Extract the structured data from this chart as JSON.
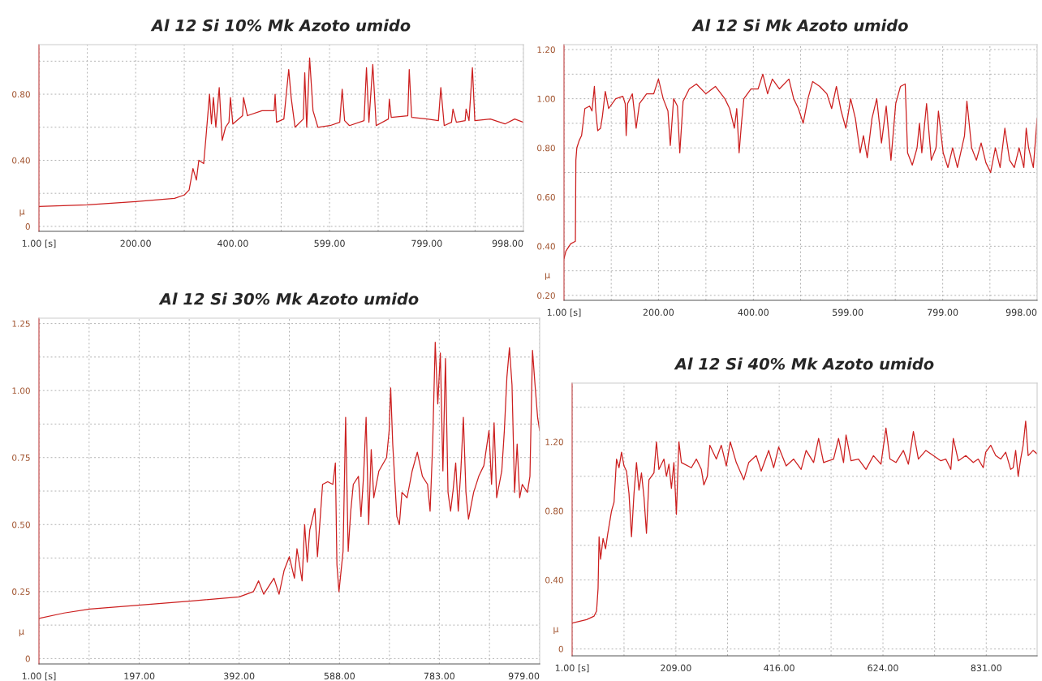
{
  "chart_data": [
    {
      "type": "line",
      "title": "Al 12 Si 10% Mk Azoto umido",
      "ylabel": "μ",
      "grid": true,
      "marker": "none",
      "line_style": "solid",
      "xlim": [
        1,
        998
      ],
      "xticks": [
        {
          "value": 1,
          "label": "1.00 [s]"
        },
        {
          "value": 100.5,
          "label": null
        },
        {
          "value": 200,
          "label": "200.00"
        },
        {
          "value": 300,
          "label": null
        },
        {
          "value": 400,
          "label": "400.00"
        },
        {
          "value": 499.5,
          "label": null
        },
        {
          "value": 599,
          "label": "599.00"
        },
        {
          "value": 699,
          "label": null
        },
        {
          "value": 799,
          "label": "799.00"
        },
        {
          "value": 898.5,
          "label": null
        },
        {
          "value": 998,
          "label": "998.00"
        }
      ],
      "ylim": [
        -0.03,
        1.1
      ],
      "yticks": [
        0,
        {
          "value": 0.2,
          "label": null
        },
        {
          "value": 0.4,
          "label": "0.40"
        },
        {
          "value": 0.6,
          "label": null
        },
        {
          "value": 0.8,
          "label": "0.80"
        },
        {
          "value": 1.0,
          "label": null
        }
      ],
      "series": [
        {
          "color": "#cc1f1f",
          "x": [
            1,
            100,
            200,
            280,
            300,
            310,
            318,
            325,
            330,
            340,
            345,
            352,
            356,
            360,
            365,
            372,
            378,
            385,
            392,
            395,
            400,
            420,
            422,
            430,
            460,
            485,
            487,
            490,
            505,
            515,
            520,
            528,
            545,
            548,
            552,
            558,
            565,
            575,
            600,
            620,
            625,
            630,
            640,
            670,
            675,
            680,
            688,
            695,
            720,
            722,
            726,
            760,
            763,
            768,
            800,
            823,
            828,
            835,
            850,
            853,
            860,
            878,
            880,
            886,
            893,
            898,
            930,
            960,
            980,
            998
          ],
          "values": [
            0.12,
            0.13,
            0.15,
            0.17,
            0.19,
            0.22,
            0.35,
            0.28,
            0.4,
            0.38,
            0.55,
            0.8,
            0.62,
            0.78,
            0.6,
            0.84,
            0.52,
            0.6,
            0.63,
            0.78,
            0.62,
            0.67,
            0.78,
            0.67,
            0.7,
            0.7,
            0.8,
            0.63,
            0.65,
            0.95,
            0.78,
            0.6,
            0.65,
            0.93,
            0.6,
            1.02,
            0.7,
            0.6,
            0.61,
            0.63,
            0.83,
            0.64,
            0.61,
            0.64,
            0.96,
            0.63,
            0.98,
            0.61,
            0.65,
            0.77,
            0.66,
            0.67,
            0.95,
            0.66,
            0.65,
            0.64,
            0.84,
            0.61,
            0.63,
            0.71,
            0.63,
            0.64,
            0.71,
            0.64,
            0.96,
            0.64,
            0.65,
            0.62,
            0.65,
            0.63
          ]
        }
      ]
    },
    {
      "type": "line",
      "title": "Al 12 Si Mk Azoto umido",
      "ylabel": "μ",
      "grid": true,
      "marker": "none",
      "line_style": "solid",
      "xlim": [
        1,
        998
      ],
      "xticks": [
        {
          "value": 1,
          "label": "1.00 [s]"
        },
        {
          "value": 100.5,
          "label": null
        },
        {
          "value": 200,
          "label": "200.00"
        },
        {
          "value": 300,
          "label": null
        },
        {
          "value": 400,
          "label": "400.00"
        },
        {
          "value": 499.5,
          "label": null
        },
        {
          "value": 599,
          "label": "599.00"
        },
        {
          "value": 699,
          "label": null
        },
        {
          "value": 799,
          "label": "799.00"
        },
        {
          "value": 898.5,
          "label": null
        },
        {
          "value": 998,
          "label": "998.00"
        }
      ],
      "ylim": [
        0.18,
        1.22
      ],
      "yticks": [
        {
          "value": 0.2,
          "label": "0.20"
        },
        {
          "value": 0.3,
          "label": null
        },
        {
          "value": 0.4,
          "label": "0.40"
        },
        {
          "value": 0.5,
          "label": null
        },
        {
          "value": 0.6,
          "label": "0.60"
        },
        {
          "value": 0.7,
          "label": null
        },
        {
          "value": 0.8,
          "label": "0.80"
        },
        {
          "value": 0.9,
          "label": null
        },
        {
          "value": 1.0,
          "label": "1.00"
        },
        {
          "value": 1.1,
          "label": null
        },
        {
          "value": 1.2,
          "label": "1.20"
        }
      ],
      "series": [
        {
          "color": "#cc1f1f",
          "x": [
            1,
            5,
            15,
            25,
            26,
            28,
            33,
            38,
            45,
            55,
            60,
            65,
            68,
            72,
            78,
            82,
            88,
            95,
            110,
            125,
            130,
            132,
            135,
            145,
            153,
            160,
            175,
            190,
            200,
            210,
            220,
            225,
            232,
            240,
            245,
            252,
            265,
            280,
            300,
            320,
            340,
            350,
            360,
            365,
            370,
            375,
            380,
            395,
            410,
            420,
            430,
            440,
            455,
            475,
            485,
            495,
            505,
            515,
            525,
            540,
            555,
            565,
            575,
            585,
            595,
            605,
            615,
            625,
            632,
            640,
            650,
            660,
            670,
            680,
            690,
            700,
            710,
            720,
            725,
            735,
            745,
            750,
            755,
            765,
            775,
            785,
            790,
            800,
            810,
            820,
            830,
            845,
            850,
            860,
            870,
            880,
            890,
            900,
            910,
            920,
            930,
            940,
            950,
            960,
            970,
            975,
            980,
            990,
            998
          ],
          "values": [
            0.35,
            0.38,
            0.41,
            0.42,
            0.75,
            0.8,
            0.83,
            0.85,
            0.96,
            0.97,
            0.95,
            1.05,
            0.95,
            0.87,
            0.88,
            0.93,
            1.03,
            0.96,
            1.0,
            1.01,
            0.98,
            0.85,
            0.98,
            1.02,
            0.88,
            0.98,
            1.02,
            1.02,
            1.08,
            1.0,
            0.95,
            0.81,
            1.0,
            0.97,
            0.78,
            0.99,
            1.04,
            1.06,
            1.02,
            1.05,
            1.0,
            0.96,
            0.88,
            0.96,
            0.78,
            0.9,
            1.0,
            1.04,
            1.04,
            1.1,
            1.02,
            1.08,
            1.04,
            1.08,
            1.0,
            0.96,
            0.9,
            1.0,
            1.07,
            1.05,
            1.02,
            0.96,
            1.05,
            0.95,
            0.88,
            1.0,
            0.92,
            0.78,
            0.85,
            0.76,
            0.92,
            1.0,
            0.82,
            0.97,
            0.75,
            0.98,
            1.05,
            1.06,
            0.78,
            0.73,
            0.8,
            0.9,
            0.78,
            0.98,
            0.75,
            0.8,
            0.95,
            0.78,
            0.72,
            0.8,
            0.72,
            0.85,
            0.99,
            0.8,
            0.75,
            0.82,
            0.74,
            0.7,
            0.8,
            0.72,
            0.88,
            0.75,
            0.72,
            0.8,
            0.72,
            0.88,
            0.8,
            0.72,
            0.92
          ]
        }
      ]
    },
    {
      "type": "line",
      "title": "Al 12 Si 30% Mk Azoto umido",
      "ylabel": "μ",
      "grid": true,
      "marker": "none",
      "line_style": "solid",
      "xlim": [
        1,
        979
      ],
      "xticks": [
        {
          "value": 1,
          "label": "1.00 [s]"
        },
        {
          "value": 99,
          "label": null
        },
        {
          "value": 197,
          "label": "197.00"
        },
        {
          "value": 294.5,
          "label": null
        },
        {
          "value": 392,
          "label": "392.00"
        },
        {
          "value": 490,
          "label": null
        },
        {
          "value": 588,
          "label": "588.00"
        },
        {
          "value": 685.5,
          "label": null
        },
        {
          "value": 783,
          "label": "783.00"
        },
        {
          "value": 881,
          "label": null
        },
        {
          "value": 979,
          "label": "979.00"
        }
      ],
      "ylim": [
        -0.02,
        1.27
      ],
      "yticks": [
        0,
        {
          "value": 0.125,
          "label": null
        },
        {
          "value": 0.25,
          "label": "0.25"
        },
        {
          "value": 0.375,
          "label": null
        },
        {
          "value": 0.5,
          "label": "0.50"
        },
        {
          "value": 0.625,
          "label": null
        },
        {
          "value": 0.75,
          "label": "0.75"
        },
        {
          "value": 0.875,
          "label": null
        },
        {
          "value": 1.0,
          "label": "1.00"
        },
        {
          "value": 1.125,
          "label": null
        },
        {
          "value": 1.25,
          "label": "1.25"
        }
      ],
      "series": [
        {
          "color": "#cc1f1f",
          "x": [
            1,
            50,
            100,
            200,
            300,
            392,
            420,
            430,
            440,
            460,
            470,
            480,
            490,
            500,
            505,
            515,
            520,
            525,
            530,
            540,
            545,
            555,
            565,
            575,
            580,
            583,
            587,
            595,
            600,
            605,
            610,
            615,
            625,
            630,
            635,
            640,
            645,
            650,
            655,
            665,
            680,
            685,
            688,
            692,
            700,
            705,
            710,
            720,
            730,
            740,
            750,
            760,
            765,
            770,
            775,
            780,
            785,
            790,
            795,
            800,
            805,
            810,
            815,
            820,
            825,
            830,
            835,
            840,
            850,
            860,
            870,
            880,
            885,
            890,
            895,
            905,
            910,
            915,
            920,
            925,
            930,
            935,
            940,
            945,
            955,
            960,
            965,
            970,
            975,
            979
          ],
          "values": [
            0.15,
            0.17,
            0.185,
            0.2,
            0.215,
            0.23,
            0.25,
            0.29,
            0.24,
            0.3,
            0.24,
            0.33,
            0.38,
            0.3,
            0.41,
            0.29,
            0.5,
            0.36,
            0.48,
            0.56,
            0.38,
            0.65,
            0.66,
            0.65,
            0.73,
            0.35,
            0.25,
            0.4,
            0.9,
            0.4,
            0.55,
            0.65,
            0.68,
            0.53,
            0.68,
            0.9,
            0.5,
            0.78,
            0.6,
            0.7,
            0.75,
            0.85,
            1.01,
            0.8,
            0.53,
            0.5,
            0.62,
            0.6,
            0.7,
            0.77,
            0.68,
            0.65,
            0.55,
            0.8,
            1.18,
            0.95,
            1.14,
            0.7,
            1.12,
            0.62,
            0.55,
            0.63,
            0.73,
            0.55,
            0.7,
            0.9,
            0.62,
            0.52,
            0.62,
            0.68,
            0.72,
            0.85,
            0.65,
            0.88,
            0.6,
            0.7,
            0.85,
            1.05,
            1.16,
            1.02,
            0.62,
            0.8,
            0.6,
            0.65,
            0.62,
            0.68,
            1.15,
            1.02,
            0.9,
            0.85
          ]
        }
      ]
    },
    {
      "type": "line",
      "title": "Al 12 Si 40% Mk Azoto umido",
      "ylabel": "μ",
      "grid": true,
      "marker": "none",
      "line_style": "solid",
      "xlim": [
        1,
        933
      ],
      "xticks": [
        {
          "value": 1,
          "label": "1.00 [s]"
        },
        {
          "value": 105,
          "label": null
        },
        {
          "value": 209,
          "label": "209.00"
        },
        {
          "value": 312.5,
          "label": null
        },
        {
          "value": 416,
          "label": "416.00"
        },
        {
          "value": 520,
          "label": null
        },
        {
          "value": 624,
          "label": "624.00"
        },
        {
          "value": 727.5,
          "label": null
        },
        {
          "value": 831,
          "label": "831.00"
        }
      ],
      "ylim": [
        -0.04,
        1.54
      ],
      "yticks": [
        0,
        {
          "value": 0.2,
          "label": null
        },
        {
          "value": 0.4,
          "label": "0.40"
        },
        {
          "value": 0.6,
          "label": null
        },
        {
          "value": 0.8,
          "label": "0.80"
        },
        {
          "value": 1.0,
          "label": null
        },
        {
          "value": 1.2,
          "label": "1.20"
        },
        {
          "value": 1.4,
          "label": null
        }
      ],
      "series": [
        {
          "color": "#cc1f1f",
          "x": [
            1,
            30,
            45,
            50,
            53,
            55,
            58,
            63,
            68,
            72,
            80,
            85,
            90,
            95,
            100,
            105,
            110,
            115,
            120,
            125,
            130,
            135,
            140,
            145,
            150,
            155,
            165,
            170,
            175,
            185,
            190,
            195,
            200,
            205,
            210,
            215,
            220,
            240,
            250,
            260,
            265,
            272,
            277,
            290,
            300,
            310,
            318,
            330,
            345,
            355,
            370,
            380,
            395,
            405,
            415,
            430,
            445,
            460,
            470,
            485,
            495,
            505,
            525,
            535,
            545,
            550,
            560,
            575,
            590,
            605,
            620,
            630,
            638,
            650,
            665,
            675,
            685,
            695,
            710,
            725,
            740,
            750,
            760,
            765,
            775,
            790,
            805,
            815,
            825,
            830,
            840,
            850,
            860,
            870,
            880,
            885,
            890,
            895,
            900,
            905,
            910,
            915,
            925,
            933
          ],
          "values": [
            0.15,
            0.17,
            0.19,
            0.22,
            0.35,
            0.65,
            0.52,
            0.64,
            0.58,
            0.66,
            0.8,
            0.85,
            1.1,
            1.05,
            1.14,
            1.06,
            1.03,
            0.9,
            0.65,
            0.9,
            1.08,
            0.92,
            1.02,
            0.88,
            0.67,
            0.98,
            1.02,
            1.2,
            1.04,
            1.1,
            1.0,
            1.07,
            0.93,
            1.08,
            0.78,
            1.2,
            1.08,
            1.05,
            1.1,
            1.04,
            0.95,
            1.0,
            1.18,
            1.1,
            1.18,
            1.06,
            1.2,
            1.08,
            0.98,
            1.08,
            1.12,
            1.03,
            1.15,
            1.05,
            1.17,
            1.06,
            1.1,
            1.04,
            1.15,
            1.08,
            1.22,
            1.08,
            1.1,
            1.22,
            1.08,
            1.24,
            1.09,
            1.1,
            1.04,
            1.12,
            1.07,
            1.28,
            1.1,
            1.08,
            1.15,
            1.07,
            1.26,
            1.1,
            1.15,
            1.12,
            1.09,
            1.1,
            1.04,
            1.22,
            1.09,
            1.12,
            1.08,
            1.1,
            1.05,
            1.14,
            1.18,
            1.12,
            1.1,
            1.14,
            1.04,
            1.05,
            1.15,
            1.0,
            1.1,
            1.18,
            1.32,
            1.12,
            1.15,
            1.13
          ]
        }
      ]
    }
  ]
}
